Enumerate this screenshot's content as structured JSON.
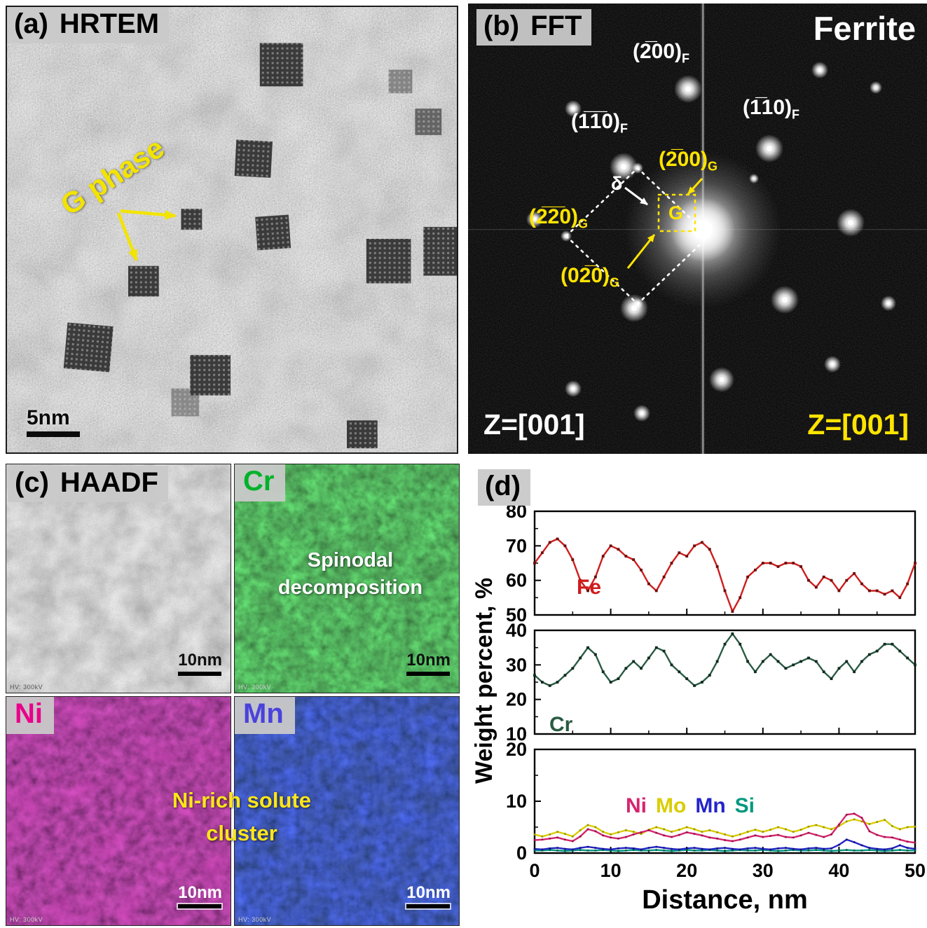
{
  "panel_a": {
    "tag": "(a)",
    "title": "HRTEM",
    "annotation": "G phase",
    "scale_bar": "5nm"
  },
  "panel_b": {
    "tag": "(b)",
    "title": "FFT",
    "phase": "Ferrite",
    "zone_white": "Z=[001]",
    "zone_yellow": "Z=[001]",
    "delta": "δ",
    "g_box": "G",
    "refl": {
      "f200": {
        "t": "(2̅00)",
        "s": "F"
      },
      "f110a": {
        "t": "(1̅1̅0)",
        "s": "F"
      },
      "f110b": {
        "t": "(1̅10)",
        "s": "F"
      },
      "g200": {
        "t": "(2̅00)",
        "s": "G"
      },
      "g220": {
        "t": "(2̅2̅0)",
        "s": "G"
      },
      "g020": {
        "t": "(02̅0)",
        "s": "G"
      }
    }
  },
  "panel_c": {
    "tag": "(c)",
    "title": "HAADF",
    "maps": {
      "cr": "Cr",
      "ni": "Ni",
      "mn": "Mn"
    },
    "label_colors": {
      "cr": "#00b22a",
      "ni": "#e8008a",
      "mn": "#4a42dc"
    },
    "spinodal": [
      "Spinodal",
      "decomposition"
    ],
    "cluster": [
      "Ni-rich solute",
      "cluster"
    ],
    "scale_bar": "10nm",
    "hv": "HV: 300kV"
  },
  "panel_d": {
    "tag": "(d)",
    "ylabel": "Weight percent, %",
    "xlabel": "Distance, nm"
  },
  "chart_data": {
    "type": "line",
    "title": "",
    "xlabel": "Distance, nm",
    "ylabel": "Weight percent, %",
    "x": [
      0,
      1,
      2,
      3,
      4,
      5,
      6,
      7,
      8,
      9,
      10,
      11,
      12,
      13,
      14,
      15,
      16,
      17,
      18,
      19,
      20,
      21,
      22,
      23,
      24,
      25,
      26,
      27,
      28,
      29,
      30,
      31,
      32,
      33,
      34,
      35,
      36,
      37,
      38,
      39,
      40,
      41,
      42,
      43,
      44,
      45,
      46,
      47,
      48,
      49,
      50
    ],
    "xticks": [
      0,
      10,
      20,
      30,
      40,
      50
    ],
    "xlim": [
      0,
      50
    ],
    "legend": {
      "fe": "Fe",
      "cr": "Cr",
      "ni": "Ni",
      "mo": "Mo",
      "mn": "Mn",
      "si": "Si"
    },
    "subplots": [
      {
        "ylim": [
          50,
          80
        ],
        "yticks": [
          50,
          60,
          70,
          80
        ],
        "series": [
          {
            "name": "Fe",
            "color": "#cf1d1d",
            "marker": "#6e0b0b",
            "values": [
              65,
              68,
              71,
              72,
              70,
              66,
              60,
              57,
              61,
              67,
              70,
              69,
              67,
              66,
              63,
              59,
              57,
              61,
              65,
              68,
              67,
              70,
              71,
              69,
              64,
              57,
              51,
              55,
              61,
              63,
              65,
              65,
              64,
              65,
              65,
              64,
              60,
              58,
              61,
              60,
              57,
              60,
              62,
              59,
              57,
              57,
              56,
              57,
              55,
              59,
              65
            ]
          }
        ]
      },
      {
        "ylim": [
          10,
          40
        ],
        "yticks": [
          10,
          20,
          30,
          40
        ],
        "series": [
          {
            "name": "Cr",
            "color": "#2a5a43",
            "marker": "#102a1e",
            "values": [
              27,
              25,
              24,
              25,
              27,
              29,
              32,
              35,
              33,
              28,
              25,
              26,
              29,
              31,
              29,
              32,
              35,
              34,
              30,
              28,
              26,
              24,
              25,
              27,
              31,
              36,
              39,
              36,
              31,
              28,
              31,
              33,
              31,
              29,
              30,
              31,
              32,
              31,
              28,
              26,
              29,
              31,
              28,
              31,
              33,
              34,
              36,
              36,
              34,
              32,
              30
            ]
          }
        ]
      },
      {
        "ylim": [
          0,
          20
        ],
        "yticks": [
          0,
          10,
          20
        ],
        "series": [
          {
            "name": "Ni",
            "color": "#d6246e",
            "marker": "#8f1446",
            "values": [
              2.5,
              2.6,
              2.8,
              3.0,
              2.6,
              2.3,
              3.2,
              4.6,
              4.2,
              3.4,
              3.0,
              2.8,
              3.1,
              3.6,
              4.0,
              4.4,
              3.9,
              3.4,
              3.1,
              3.5,
              4.0,
              3.7,
              3.4,
              3.0,
              2.8,
              2.5,
              2.3,
              2.6,
              3.0,
              3.4,
              3.1,
              3.3,
              3.5,
              3.1,
              3.0,
              3.4,
              3.9,
              3.5,
              3.1,
              3.6,
              5.5,
              7.4,
              7.6,
              6.8,
              4.2,
              3.5,
              3.1,
              3.0,
              2.6,
              2.2,
              2.0
            ]
          },
          {
            "name": "Mo",
            "color": "#d9ce00",
            "marker": "#9a9200",
            "values": [
              3.6,
              3.2,
              3.6,
              4.1,
              3.7,
              3.2,
              4.4,
              5.4,
              5.0,
              4.1,
              3.6,
              4.0,
              4.4,
              4.1,
              3.7,
              4.5,
              5.0,
              4.6,
              4.1,
              4.5,
              5.0,
              4.6,
              4.1,
              4.4,
              4.0,
              3.6,
              3.2,
              3.6,
              4.1,
              4.5,
              4.1,
              4.5,
              5.0,
              4.6,
              4.1,
              4.5,
              5.1,
              5.4,
              5.0,
              4.6,
              5.2,
              6.1,
              6.5,
              6.1,
              5.6,
              6.0,
              6.4,
              5.2,
              4.6,
              5.0,
              5.1
            ]
          },
          {
            "name": "Mn",
            "color": "#2323cc",
            "marker": "#12126e",
            "values": [
              0.8,
              0.7,
              0.9,
              1.0,
              0.8,
              0.7,
              1.0,
              1.2,
              1.0,
              0.8,
              0.7,
              0.9,
              1.0,
              0.9,
              0.7,
              1.0,
              1.2,
              1.0,
              0.8,
              0.7,
              0.9,
              1.0,
              0.8,
              0.7,
              0.9,
              1.0,
              0.8,
              0.7,
              0.9,
              1.0,
              0.8,
              0.7,
              0.9,
              1.0,
              0.8,
              0.7,
              0.9,
              1.0,
              0.8,
              0.9,
              1.6,
              2.6,
              2.1,
              1.5,
              1.0,
              0.8,
              0.7,
              0.9,
              1.5,
              1.0,
              0.8
            ]
          },
          {
            "name": "Si",
            "color": "#00997f",
            "marker": "#00584a",
            "values": [
              0.5,
              0.5,
              0.6,
              0.5,
              0.4,
              0.5,
              0.6,
              0.5,
              0.5,
              0.6,
              0.5,
              0.4,
              0.5,
              0.6,
              0.5,
              0.5,
              0.6,
              0.5,
              0.4,
              0.5,
              0.6,
              0.5,
              0.5,
              0.6,
              0.5,
              0.4,
              0.5,
              0.6,
              0.5,
              0.5,
              0.6,
              0.5,
              0.4,
              0.5,
              0.6,
              0.5,
              0.5,
              0.6,
              0.5,
              0.4,
              0.5,
              0.6,
              0.5,
              0.5,
              0.6,
              0.5,
              0.4,
              0.5,
              0.6,
              0.5,
              0.5
            ]
          }
        ]
      }
    ]
  }
}
